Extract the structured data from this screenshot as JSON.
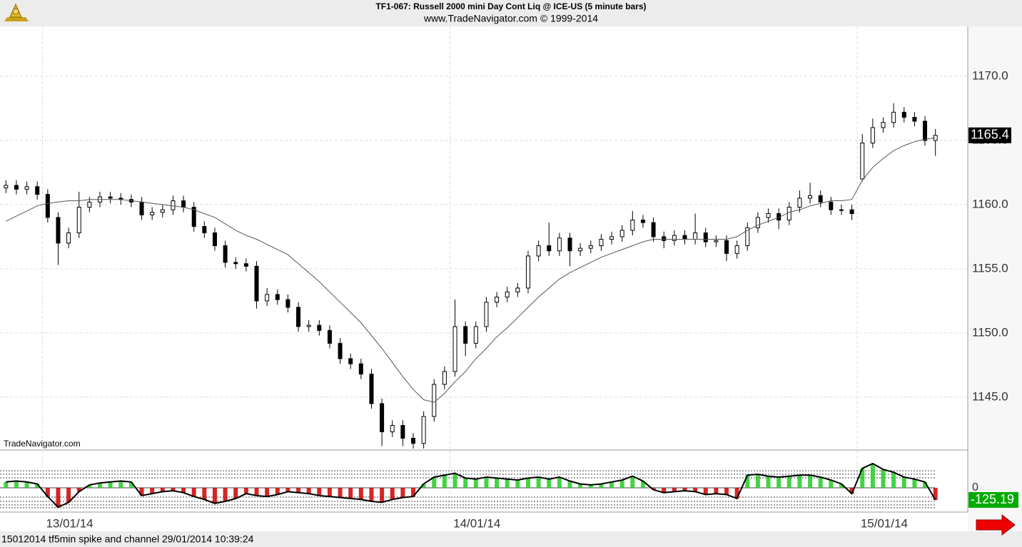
{
  "chart_data": [
    {
      "type": "candlestick",
      "title": "TF1-067:  Russell 2000 mini Day Cont Liq @ ICE-US  (5 minute bars)",
      "subtitle": "www.TradeNavigator.com © 1999-2014",
      "watermark": "TradeNavigator.com",
      "categories": [
        null,
        null,
        null,
        null,
        "13/01/14",
        null,
        null,
        null,
        null,
        null,
        null,
        null,
        null,
        null,
        null,
        null,
        null,
        null,
        null,
        null,
        null,
        null,
        null,
        null,
        null,
        null,
        null,
        null,
        null,
        null,
        null,
        null,
        null,
        null,
        null,
        null,
        null,
        null,
        null,
        null,
        null,
        null,
        null,
        "14/01/14",
        null,
        null,
        null,
        null,
        null,
        null,
        null,
        null,
        null,
        null,
        null,
        null,
        null,
        null,
        null,
        null,
        null,
        null,
        null,
        null,
        null,
        null,
        null,
        null,
        null,
        null,
        null,
        null,
        null,
        null,
        null,
        null,
        null,
        null,
        null,
        null,
        null,
        null,
        "15/01/14",
        null,
        null,
        null,
        null,
        null,
        null,
        null
      ],
      "open": [
        1161.3,
        1161.5,
        1161.2,
        1161.4,
        1160.8,
        1159,
        1157,
        1157.8,
        1159.8,
        1160.2,
        1160.6,
        1160.5,
        1160.4,
        1160.2,
        1159.2,
        1159.4,
        1159.6,
        1160.3,
        1159.8,
        1158.3,
        1157.8,
        1156.8,
        1155.5,
        1155.4,
        1155.2,
        1152.5,
        1153,
        1152.6,
        1152,
        1150.5,
        1150.6,
        1150.2,
        1149.2,
        1148,
        1147.6,
        1146.8,
        1144.5,
        1142.3,
        1142.8,
        1141.8,
        1141.4,
        1143.5,
        1146,
        1147,
        1150.5,
        1149.2,
        1150.5,
        1152.4,
        1152.8,
        1153.2,
        1153.5,
        1156,
        1156.8,
        1156.4,
        1157.4,
        1156.4,
        1156.6,
        1156.8,
        1157.3,
        1157.5,
        1158,
        1158.8,
        1158.6,
        1157.5,
        1157.2,
        1157.6,
        1157.3,
        1157.8,
        1157.1,
        1157.2,
        1156.2,
        1156.8,
        1158.2,
        1159,
        1159.3,
        1158.8,
        1159.8,
        1160.5,
        1160.7,
        1160.2,
        1159.6,
        1159.6,
        1162,
        1164.8,
        1166,
        1166.4,
        1167.2,
        1166.8,
        1166.5,
        1165
      ],
      "high": [
        1161.9,
        1161.9,
        1161.8,
        1161.8,
        1161.2,
        1159.4,
        1158.2,
        1161,
        1160.6,
        1161,
        1161,
        1160.9,
        1160.8,
        1160.6,
        1159.8,
        1160,
        1160.7,
        1160.7,
        1160.2,
        1158.7,
        1158.2,
        1157.2,
        1155.9,
        1155.8,
        1155.6,
        1153.5,
        1153.4,
        1153,
        1152.4,
        1151,
        1151,
        1150.6,
        1149.6,
        1148.4,
        1148,
        1147.2,
        1144.9,
        1143.2,
        1143.2,
        1142.2,
        1143.9,
        1146.4,
        1147.4,
        1152.6,
        1150.9,
        1150.9,
        1152.8,
        1153.2,
        1153.6,
        1153.9,
        1156.4,
        1157.2,
        1158.6,
        1157.8,
        1157.8,
        1157,
        1157.2,
        1157.7,
        1157.9,
        1158.4,
        1159.5,
        1159.2,
        1159,
        1157.9,
        1158,
        1158,
        1159.3,
        1158.2,
        1157.6,
        1157.6,
        1157.2,
        1158.6,
        1159.4,
        1159.7,
        1159.7,
        1160.2,
        1161.1,
        1161.7,
        1161.1,
        1160.6,
        1160,
        1160,
        1165.5,
        1166.7,
        1166.8,
        1167.9,
        1167.6,
        1167.2,
        1166.9,
        1165.9
      ],
      "low": [
        1160.9,
        1160.8,
        1160.8,
        1160.4,
        1158.6,
        1155.3,
        1156.6,
        1157.4,
        1159.4,
        1159.8,
        1160.1,
        1160,
        1159.8,
        1158.8,
        1158.8,
        1159,
        1159.2,
        1159.4,
        1157.9,
        1157.4,
        1156.4,
        1155.1,
        1155,
        1154.8,
        1151.9,
        1152.1,
        1152.2,
        1151.6,
        1150.1,
        1150.1,
        1149.8,
        1148.8,
        1147.6,
        1147.2,
        1146.4,
        1144.1,
        1141.2,
        1141.9,
        1141.2,
        1141,
        1141,
        1143.1,
        1145.6,
        1146.6,
        1148.2,
        1148.8,
        1150.1,
        1152,
        1152.4,
        1152.8,
        1153.1,
        1155.6,
        1156,
        1156,
        1155.2,
        1156,
        1156.2,
        1156.4,
        1156.9,
        1157.1,
        1157.6,
        1158.2,
        1157.1,
        1156.6,
        1156.8,
        1156.9,
        1156.9,
        1156.7,
        1156.7,
        1155.6,
        1155.8,
        1156.4,
        1157.8,
        1158.6,
        1158.1,
        1158.4,
        1159.4,
        1160.1,
        1159.8,
        1159.2,
        1159.2,
        1158.8,
        1161.8,
        1164.4,
        1165.6,
        1166,
        1166.4,
        1166.1,
        1164.6,
        1163.8
      ],
      "close": [
        1161.5,
        1161.2,
        1161.4,
        1160.8,
        1159,
        1157,
        1157.8,
        1159.8,
        1160.2,
        1160.6,
        1160.5,
        1160.4,
        1160.2,
        1159.2,
        1159.4,
        1159.6,
        1160.3,
        1159.8,
        1158.3,
        1157.8,
        1156.8,
        1155.5,
        1155.4,
        1155.2,
        1152.5,
        1153,
        1152.6,
        1152,
        1150.5,
        1150.6,
        1150.2,
        1149.2,
        1148,
        1147.6,
        1146.8,
        1144.5,
        1142.3,
        1142.8,
        1141.8,
        1141.4,
        1143.5,
        1146,
        1147,
        1150.5,
        1149.2,
        1150.5,
        1152.4,
        1152.8,
        1153.2,
        1153.5,
        1156,
        1156.8,
        1156.4,
        1157.4,
        1156.4,
        1156.6,
        1156.8,
        1157.3,
        1157.5,
        1158,
        1158.8,
        1158.6,
        1157.5,
        1157.2,
        1157.6,
        1157.3,
        1157.8,
        1157.1,
        1157.2,
        1156.2,
        1156.8,
        1158.2,
        1159,
        1159.3,
        1158.8,
        1159.8,
        1160.5,
        1160.7,
        1160.2,
        1159.6,
        1159.6,
        1159.3,
        1164.8,
        1166,
        1166.4,
        1167.2,
        1166.8,
        1166.5,
        1165,
        1165.4
      ],
      "last_value_label": "1165.4",
      "overlay": {
        "color": "#555555",
        "values": [
          1158.7,
          1159.1,
          1159.5,
          1159.9,
          1160.1,
          1160.2,
          1160.3,
          1160.3,
          1160.4,
          1160.4,
          1160.4,
          1160.4,
          1160.3,
          1160.2,
          1160.1,
          1160,
          1159.9,
          1159.8,
          1159.6,
          1159.3,
          1159,
          1158.5,
          1158,
          1157.6,
          1157.3,
          1156.9,
          1156.5,
          1156.1,
          1155.4,
          1154.7,
          1154,
          1153.2,
          1152.4,
          1151.6,
          1150.8,
          1149.8,
          1148.8,
          1147.7,
          1146.6,
          1145.6,
          1144.8,
          1144.6,
          1145.3,
          1146.2,
          1147,
          1148,
          1148.8,
          1149.7,
          1150.4,
          1151.2,
          1152,
          1152.8,
          1153.5,
          1154.2,
          1154.7,
          1155.1,
          1155.5,
          1155.9,
          1156.2,
          1156.5,
          1156.8,
          1157.1,
          1157.3,
          1157.3,
          1157.3,
          1157.3,
          1157.3,
          1157.3,
          1157.3,
          1157.3,
          1157.5,
          1158,
          1158.4,
          1158.7,
          1159,
          1159.4,
          1159.6,
          1159.9,
          1160.1,
          1160.3,
          1160.3,
          1160.4,
          1161.9,
          1162.9,
          1163.6,
          1164.2,
          1164.6,
          1164.9,
          1165.1,
          1165.2
        ]
      },
      "ylim": [
        1140.94,
        1173.83
      ],
      "yticks": [
        {
          "value": 1145,
          "label": "1145.0"
        },
        {
          "value": 1150,
          "label": "1150.0"
        },
        {
          "value": 1155,
          "label": "1155.0"
        },
        {
          "value": 1160,
          "label": "1160.0"
        },
        {
          "value": 1165,
          "label": "1165.0"
        },
        {
          "value": 1170,
          "label": "1170.0"
        }
      ],
      "grid": true
    },
    {
      "type": "histogram-oscillator",
      "values": [
        60,
        70,
        60,
        40,
        -90,
        -200,
        -150,
        -40,
        30,
        50,
        60,
        70,
        60,
        -80,
        -60,
        -40,
        -30,
        -50,
        -90,
        -120,
        -160,
        -140,
        -110,
        -60,
        -80,
        -90,
        -70,
        -40,
        -50,
        -60,
        -80,
        -90,
        -100,
        -110,
        -120,
        -140,
        -150,
        -120,
        -100,
        -90,
        40,
        110,
        130,
        150,
        100,
        90,
        110,
        100,
        90,
        80,
        100,
        110,
        90,
        110,
        70,
        40,
        30,
        40,
        60,
        80,
        120,
        70,
        -20,
        -50,
        -40,
        -30,
        -40,
        -70,
        -60,
        -70,
        -110,
        130,
        140,
        120,
        110,
        120,
        130,
        130,
        110,
        80,
        40,
        -60,
        200,
        250,
        190,
        160,
        110,
        90,
        60,
        -125.19
      ],
      "last_value_label": "-125.19",
      "colors": {
        "up": "#22cc22",
        "down": "#cc0000",
        "line": "#000000"
      },
      "ylim": [
        -250,
        375
      ],
      "yticks": [
        0
      ],
      "levels": [
        176,
        140,
        103,
        -96,
        -140,
        -176,
        -206
      ]
    }
  ],
  "footer": "15012014 tf5min spike and channel   29/01/2014 10:39:24"
}
